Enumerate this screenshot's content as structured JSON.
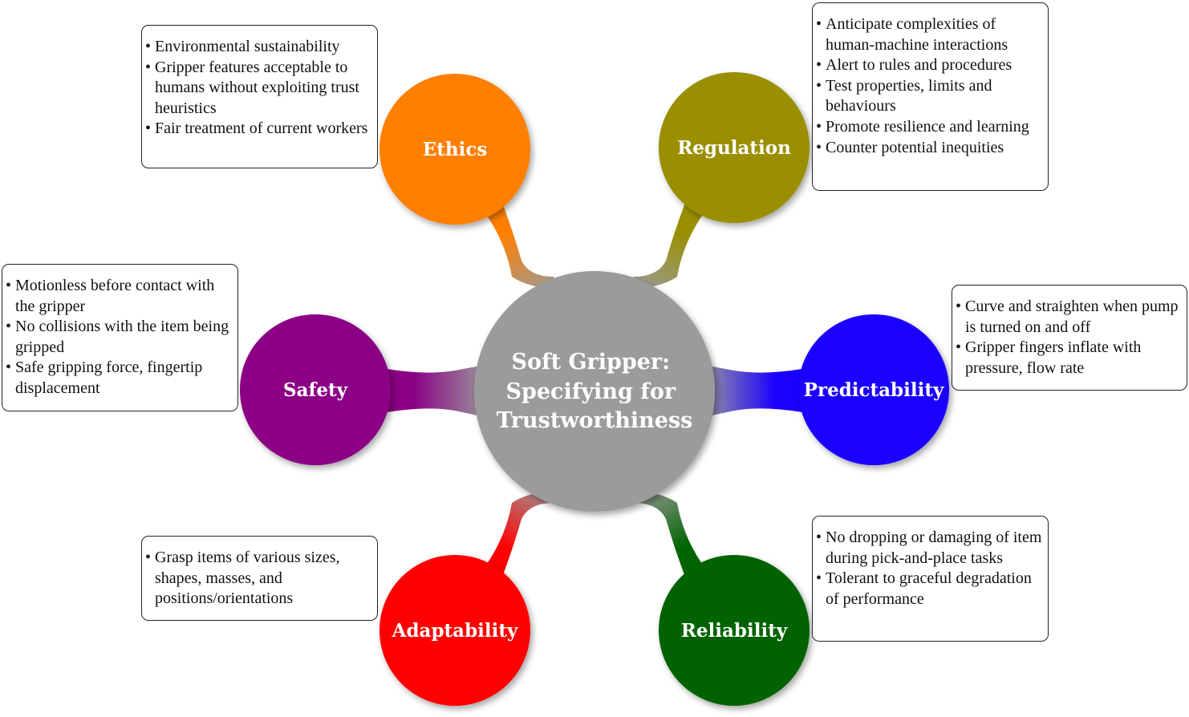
{
  "hub": {
    "lines": [
      "Soft Gripper:",
      "Specifying for",
      "Trustworthiness"
    ],
    "color": "#9b9b9b"
  },
  "nodes": [
    {
      "key": "ethics",
      "label": "Ethics",
      "color": "#ff7f00",
      "bullets": [
        "Environmental sustainability",
        "Gripper features acceptable to humans without exploiting trust heuristics",
        "Fair treatment of current workers"
      ]
    },
    {
      "key": "regulation",
      "label": "Regulation",
      "color": "#998f00",
      "bullets": [
        "Anticipate complexities of human-machine interactions",
        "Alert to rules and procedures",
        "Test properties, limits and behaviours",
        "Promote resilience and learning",
        "Counter potential inequities"
      ]
    },
    {
      "key": "predictability",
      "label": "Predictability",
      "color": "#1a00ff",
      "bullets": [
        "Curve and straighten when pump is turned on and off",
        "Gripper fingers inflate with pressure, flow rate"
      ]
    },
    {
      "key": "reliability",
      "label": "Reliability",
      "color": "#006400",
      "bullets": [
        "No dropping or damaging of item during pick-and-place tasks",
        "Tolerant to graceful degradation of performance"
      ]
    },
    {
      "key": "adaptability",
      "label": "Adaptability",
      "color": "#ff0000",
      "bullets": [
        "Grasp items of various sizes, shapes, masses, and positions/orientations"
      ]
    },
    {
      "key": "safety",
      "label": "Safety",
      "color": "#8b0085",
      "bullets": [
        "Motionless before contact with the gripper",
        "No collisions with the item being gripped",
        "Safe gripping force, fingertip displacement"
      ]
    }
  ]
}
